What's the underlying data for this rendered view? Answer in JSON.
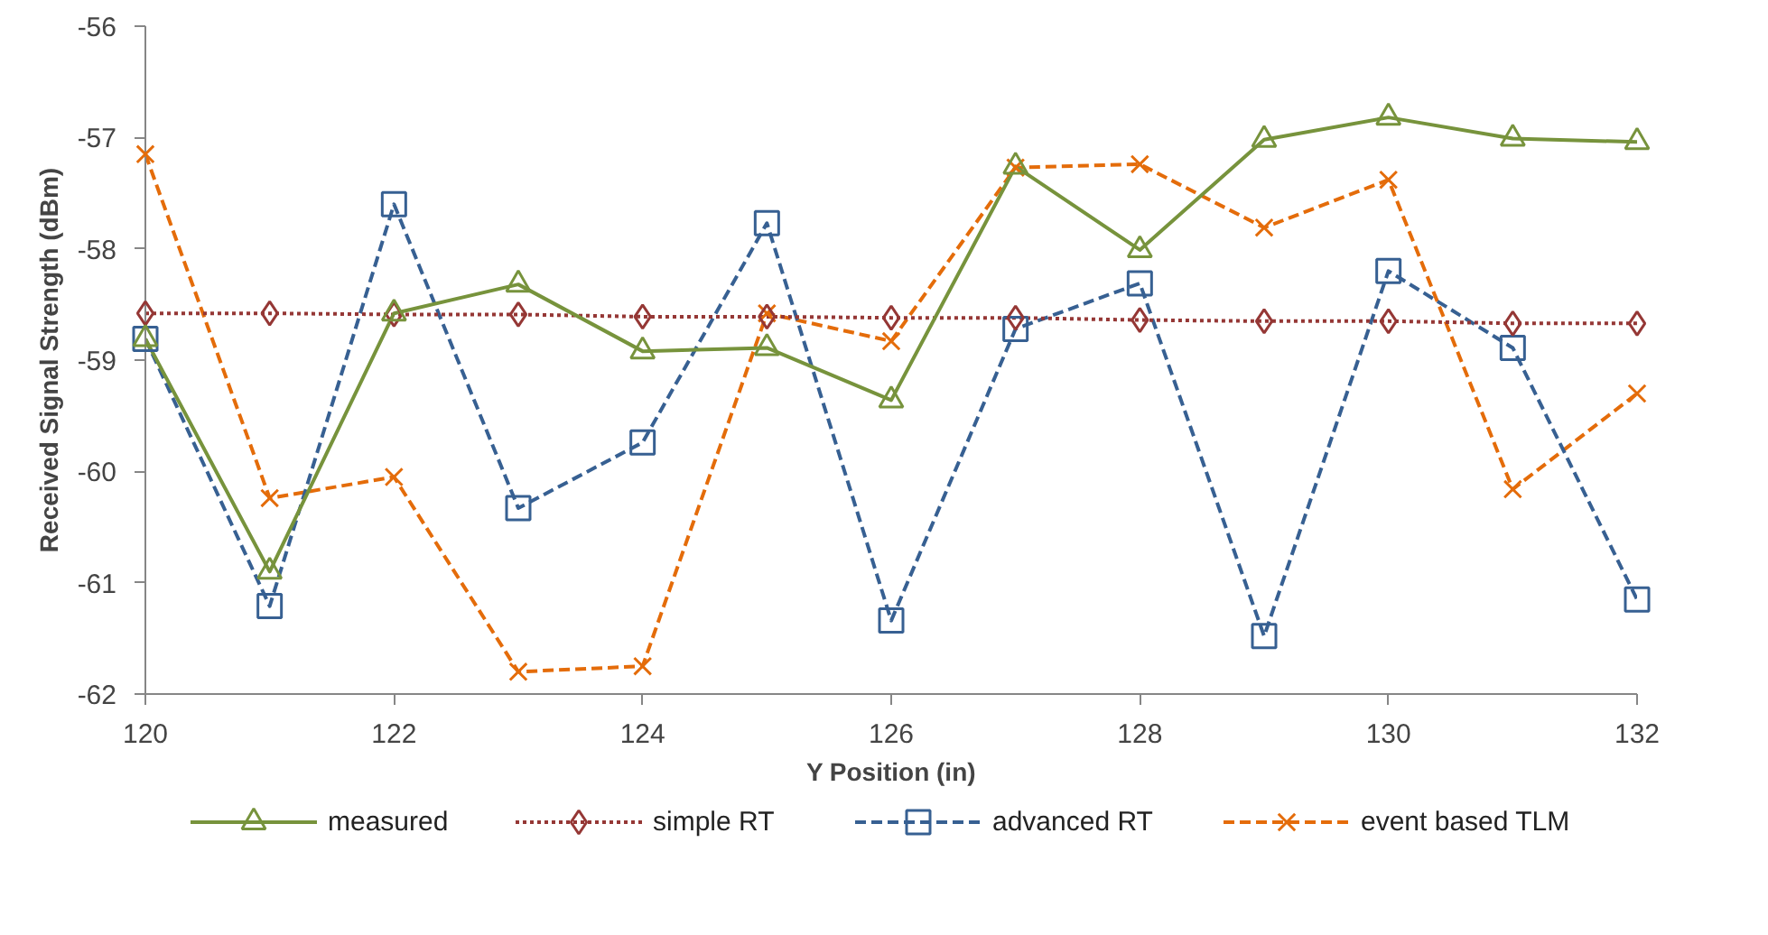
{
  "chart_data": {
    "type": "line",
    "xlabel": "Y Position (in)",
    "ylabel": "Received Signal Strength (dBm)",
    "x": [
      120,
      121,
      122,
      123,
      124,
      125,
      126,
      127,
      128,
      129,
      130,
      131,
      132
    ],
    "xlim": [
      120,
      132
    ],
    "xticks": [
      120,
      122,
      124,
      126,
      128,
      130,
      132
    ],
    "ylim": [
      -62,
      -56
    ],
    "yticks": [
      -62,
      -61,
      -60,
      -59,
      -58,
      -57,
      -56
    ],
    "grid": false,
    "legend": "bottom",
    "series": [
      {
        "name": "measured",
        "color": "#77933c",
        "marker": "triangle",
        "line_style": "solid",
        "values": [
          -58.81,
          -60.9,
          -58.58,
          -58.32,
          -58.92,
          -58.89,
          -59.36,
          -57.26,
          -58.01,
          -57.02,
          -56.82,
          -57.01,
          -57.04
        ]
      },
      {
        "name": "simple RT",
        "color": "#953735",
        "marker": "diamond",
        "line_style": "dotted",
        "values": [
          -58.58,
          -58.58,
          -58.59,
          -58.59,
          -58.61,
          -58.61,
          -58.62,
          -58.62,
          -58.64,
          -58.65,
          -58.65,
          -58.67,
          -58.67
        ]
      },
      {
        "name": "advanced RT",
        "color": "#376092",
        "marker": "square",
        "line_style": "dashed",
        "values": [
          -58.81,
          -61.21,
          -57.6,
          -60.33,
          -59.74,
          -57.77,
          -61.34,
          -58.72,
          -58.31,
          -61.48,
          -58.2,
          -58.89,
          -61.15
        ]
      },
      {
        "name": "event based  TLM",
        "color": "#e46c0a",
        "marker": "cross",
        "line_style": "dashed",
        "values": [
          -57.15,
          -60.24,
          -60.05,
          -61.8,
          -61.75,
          -58.58,
          -58.83,
          -57.27,
          -57.24,
          -57.81,
          -57.38,
          -60.16,
          -59.3
        ]
      }
    ]
  }
}
